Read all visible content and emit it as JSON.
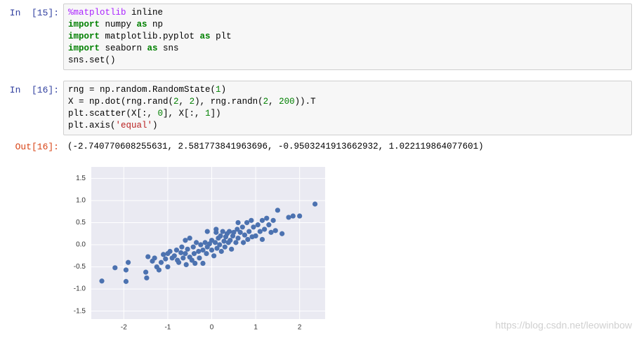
{
  "cells": [
    {
      "prompt": "In  [15]:",
      "lines": [
        "%matplotlib inline",
        "import numpy as np",
        "import matplotlib.pyplot as plt",
        "import seaborn as sns",
        "sns.set()"
      ]
    },
    {
      "prompt": "In  [16]:",
      "lines": [
        "rng = np.random.RandomState(1)",
        "X = np.dot(rng.rand(2, 2), rng.randn(2, 200)).T",
        "plt.scatter(X[:, 0], X[:, 1])",
        "plt.axis('equal')"
      ]
    }
  ],
  "output": {
    "prompt": "Out[16]:",
    "text": "(-2.740770608255631, 2.581773841963696, -0.9503241913662932, 1.022119864077601)"
  },
  "chart_data": {
    "type": "scatter",
    "color": "#4c72b0",
    "grid": true,
    "xlim": [
      -2.74,
      2.58
    ],
    "ylim": [
      -1.68,
      1.76
    ],
    "xticks": [
      -2,
      -1,
      0,
      1,
      2
    ],
    "yticks": [
      {
        "value": -1.5,
        "label": "-1.5"
      },
      {
        "value": -1,
        "label": "-1.0"
      },
      {
        "value": -0.5,
        "label": "-0.5"
      },
      {
        "value": 0,
        "label": "0.0"
      },
      {
        "value": 0.5,
        "label": "0.5"
      },
      {
        "value": 1,
        "label": "1.0"
      },
      {
        "value": 1.5,
        "label": "1.5"
      }
    ],
    "x": [
      -2.5,
      -2.2,
      -1.95,
      -1.95,
      -1.9,
      -1.5,
      -1.48,
      -1.45,
      -1.35,
      -1.3,
      -1.25,
      -1.2,
      -1.15,
      -1.1,
      -1.05,
      -1.0,
      -1.0,
      -0.95,
      -0.9,
      -0.85,
      -0.8,
      -0.78,
      -0.75,
      -0.7,
      -0.68,
      -0.65,
      -0.6,
      -0.58,
      -0.55,
      -0.5,
      -0.5,
      -0.45,
      -0.42,
      -0.4,
      -0.38,
      -0.35,
      -0.3,
      -0.28,
      -0.25,
      -0.2,
      -0.2,
      -0.15,
      -0.12,
      -0.1,
      -0.05,
      0.0,
      0.0,
      0.05,
      0.08,
      0.1,
      0.12,
      0.15,
      0.18,
      0.2,
      0.22,
      0.25,
      0.28,
      0.3,
      0.32,
      0.35,
      0.38,
      0.4,
      0.42,
      0.45,
      0.48,
      0.5,
      0.55,
      0.58,
      0.6,
      0.65,
      0.7,
      0.72,
      0.75,
      0.8,
      0.82,
      0.85,
      0.9,
      0.92,
      0.95,
      1.0,
      1.05,
      1.1,
      1.15,
      1.15,
      1.2,
      1.25,
      1.3,
      1.35,
      1.4,
      1.45,
      1.5,
      1.6,
      1.75,
      1.85,
      2.0,
      2.35,
      -0.1,
      0.1,
      -0.6,
      0.6
    ],
    "values": [
      -0.82,
      -0.52,
      -0.83,
      -0.57,
      -0.4,
      -0.62,
      -0.75,
      -0.27,
      -0.37,
      -0.3,
      -0.5,
      -0.57,
      -0.4,
      -0.22,
      -0.32,
      -0.5,
      -0.2,
      -0.15,
      -0.3,
      -0.25,
      -0.12,
      -0.35,
      -0.4,
      -0.18,
      -0.05,
      -0.3,
      -0.2,
      -0.45,
      -0.1,
      -0.28,
      0.15,
      -0.35,
      -0.05,
      -0.2,
      -0.42,
      0.05,
      -0.15,
      -0.3,
      0.0,
      -0.12,
      -0.42,
      0.05,
      -0.2,
      -0.05,
      0.02,
      -0.12,
      0.1,
      -0.25,
      0.05,
      0.28,
      -0.08,
      0.15,
      0.0,
      0.2,
      -0.15,
      0.3,
      0.08,
      -0.05,
      0.18,
      0.25,
      0.05,
      0.3,
      0.1,
      -0.1,
      0.2,
      0.28,
      0.05,
      0.35,
      0.15,
      0.28,
      0.4,
      0.05,
      0.22,
      0.5,
      0.12,
      0.3,
      0.55,
      0.18,
      0.4,
      0.2,
      0.45,
      0.3,
      0.55,
      0.12,
      0.35,
      0.6,
      0.45,
      0.28,
      0.55,
      0.32,
      0.78,
      0.25,
      0.62,
      0.65,
      0.65,
      0.92,
      0.3,
      0.35,
      0.1,
      0.5
    ]
  },
  "watermark": "https://blog.csdn.net/leowinbow"
}
